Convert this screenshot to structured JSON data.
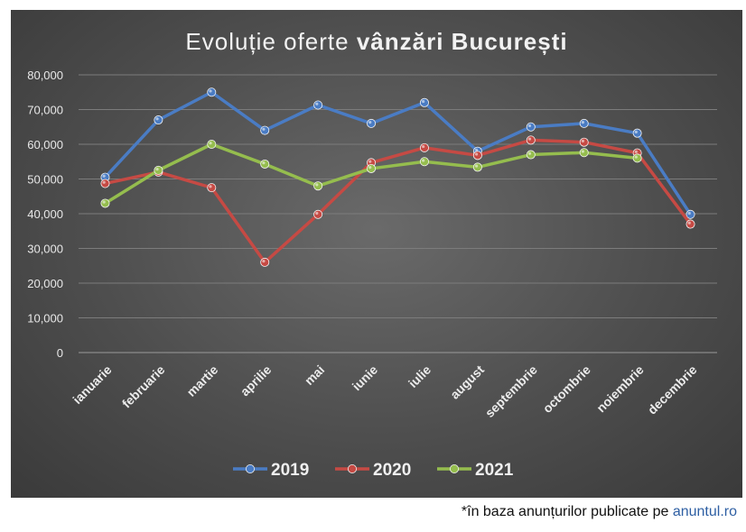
{
  "chart_data": {
    "type": "line",
    "title": "Evoluție oferte vânzări București",
    "title_plain": "Evoluție oferte ",
    "title_bold": "vânzări București",
    "xlabel": "",
    "ylabel": "",
    "categories": [
      "ianuarie",
      "februarie",
      "martie",
      "aprilie",
      "mai",
      "iunie",
      "iulie",
      "august",
      "septembrie",
      "octombrie",
      "noiembrie",
      "decembrie"
    ],
    "ylim": [
      0,
      80000
    ],
    "yticks": [
      0,
      10000,
      20000,
      30000,
      40000,
      50000,
      60000,
      70000,
      80000
    ],
    "ytick_labels": [
      "0",
      "10,000",
      "20,000",
      "30,000",
      "40,000",
      "50,000",
      "60,000",
      "70,000",
      "80,000"
    ],
    "grid": true,
    "legend_position": "bottom",
    "series": [
      {
        "name": "2019",
        "color": "#4a7cc4",
        "values": [
          50500,
          67000,
          75000,
          64000,
          71300,
          66000,
          72000,
          58000,
          65000,
          66000,
          63200,
          39800
        ]
      },
      {
        "name": "2020",
        "color": "#c64a44",
        "values": [
          48700,
          52000,
          47500,
          26000,
          39800,
          54700,
          59000,
          56800,
          61200,
          60600,
          57500,
          37000
        ]
      },
      {
        "name": "2021",
        "color": "#95bd4e",
        "values": [
          43000,
          52500,
          60000,
          54300,
          48000,
          53000,
          55000,
          53400,
          57000,
          57600,
          56000,
          null
        ]
      }
    ]
  },
  "footnote": {
    "text": "*în baza anunțurilor publicate pe ",
    "link": "anuntul.ro"
  }
}
